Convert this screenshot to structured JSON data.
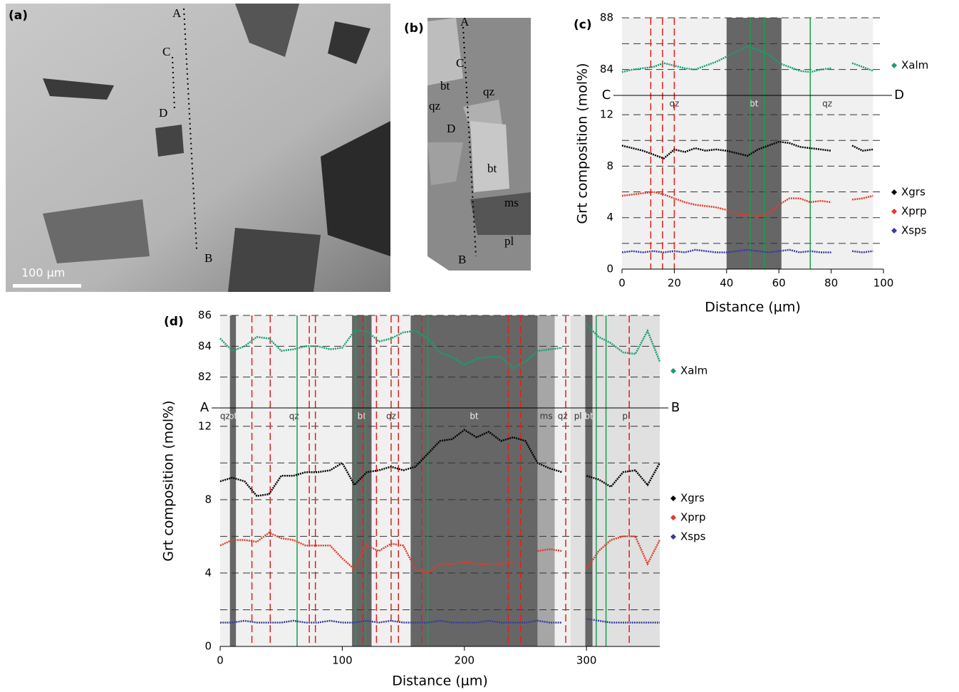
{
  "panels": [
    {
      "label": "(a)",
      "annotations": [
        "A",
        "C",
        "D",
        "B"
      ],
      "scale_bar": "100 µm"
    },
    {
      "label": "(b)",
      "annotations": [
        "A",
        "C",
        "bt",
        "qz",
        "qz",
        "D",
        "bt",
        "ms",
        "pl",
        "B"
      ]
    }
  ],
  "chart_data": [
    {
      "type": "line",
      "panel_label": "(c)",
      "xlabel": "Distance (µm)",
      "ylabel": "Grt composition (mol%)",
      "section_start": "C",
      "section_end": "D",
      "xlim": [
        0,
        100
      ],
      "xticks": [
        0,
        20,
        40,
        60,
        80,
        100
      ],
      "ylim": [
        0,
        13.5
      ],
      "yticks": [
        0,
        4,
        8,
        12
      ],
      "ygrid": [
        2,
        4,
        6,
        8,
        10,
        12
      ],
      "ylim_upper": [
        82,
        88
      ],
      "yticks_upper": [
        84,
        88
      ],
      "ygrid_upper": [
        84,
        86,
        88
      ],
      "bands": [
        {
          "from": 0,
          "to": 40,
          "label": "qz",
          "color": "#f0f0f0"
        },
        {
          "from": 40,
          "to": 61,
          "label": "bt",
          "color": "#666666"
        },
        {
          "from": 61,
          "to": 96,
          "label": "qz",
          "color": "#f0f0f0"
        }
      ],
      "red_lines": [
        11,
        15.5,
        20
      ],
      "green_lines": [
        49,
        54.5,
        72
      ],
      "x": [
        0,
        4,
        8,
        12,
        16,
        20,
        24,
        28,
        32,
        36,
        40,
        44,
        48,
        52,
        56,
        60,
        64,
        68,
        72,
        76,
        80,
        84,
        88,
        92,
        96
      ],
      "series": [
        {
          "name": "Xalm",
          "color": "#1a9e6e",
          "axis": "upper",
          "values": [
            83.8,
            84,
            84.1,
            84.2,
            84.5,
            84.3,
            84.1,
            84,
            84.3,
            84.6,
            85,
            85.4,
            85.8,
            85.5,
            85.2,
            84.5,
            84.2,
            83.9,
            83.8,
            84,
            84.1,
            null,
            84.5,
            84.2,
            83.9
          ]
        },
        {
          "name": "Xgrs",
          "color": "#000000",
          "values": [
            9.6,
            9.4,
            9.2,
            8.9,
            8.6,
            9.3,
            9.1,
            9.4,
            9.2,
            9.3,
            9.2,
            9.0,
            8.8,
            9.3,
            9.6,
            9.9,
            9.8,
            9.5,
            9.4,
            9.3,
            9.2,
            null,
            9.6,
            9.2,
            9.3
          ]
        },
        {
          "name": "Xprp",
          "color": "#e23a2a",
          "values": [
            5.7,
            5.8,
            5.9,
            6,
            5.8,
            5.5,
            5.2,
            5,
            4.9,
            4.8,
            4.6,
            4.3,
            4.2,
            4.1,
            4.3,
            5,
            5.5,
            5.5,
            5.2,
            5.3,
            5.2,
            null,
            5.4,
            5.5,
            5.7
          ]
        },
        {
          "name": "Xsps",
          "color": "#3a3a9a",
          "values": [
            1.3,
            1.4,
            1.3,
            1.4,
            1.3,
            1.4,
            1.3,
            1.5,
            1.4,
            1.3,
            1.3,
            1.4,
            1.5,
            1.4,
            1.3,
            1.4,
            1.5,
            1.3,
            1.4,
            1.3,
            1.3,
            null,
            1.4,
            1.3,
            1.4
          ]
        }
      ]
    },
    {
      "type": "line",
      "panel_label": "(d)",
      "xlabel": "Distance (µm)",
      "ylabel": "Grt composition (mol%)",
      "section_start": "A",
      "section_end": "B",
      "xlim": [
        0,
        360
      ],
      "xticks": [
        0,
        100,
        200,
        300
      ],
      "ylim": [
        0,
        13
      ],
      "yticks": [
        0,
        4,
        8,
        12
      ],
      "ygrid": [
        2,
        4,
        6,
        8,
        10,
        12
      ],
      "ylim_upper": [
        80,
        86
      ],
      "yticks_upper": [
        82,
        84,
        86
      ],
      "ygrid_upper": [
        82,
        84,
        86
      ],
      "bands": [
        {
          "from": 0,
          "to": 8,
          "label": "qz",
          "color": "#f0f0f0"
        },
        {
          "from": 8,
          "to": 13,
          "label": "bt",
          "color": "#666666"
        },
        {
          "from": 13,
          "to": 108,
          "label": "qz",
          "color": "#f0f0f0"
        },
        {
          "from": 108,
          "to": 124,
          "label": "bt",
          "color": "#666666"
        },
        {
          "from": 124,
          "to": 156,
          "label": "qz",
          "color": "#f0f0f0"
        },
        {
          "from": 156,
          "to": 260,
          "label": "bt",
          "color": "#666666"
        },
        {
          "from": 260,
          "to": 274,
          "label": "ms",
          "color": "#a6a6a6"
        },
        {
          "from": 274,
          "to": 287,
          "label": "qz",
          "color": "#f0f0f0"
        },
        {
          "from": 287,
          "to": 299,
          "label": "pl",
          "color": "#e0e0e0"
        },
        {
          "from": 299,
          "to": 305,
          "label": "bt",
          "color": "#666666"
        },
        {
          "from": 305,
          "to": 360,
          "label": "pl",
          "color": "#e0e0e0"
        }
      ],
      "red_lines": [
        26,
        41,
        73,
        78,
        117,
        128,
        140,
        146,
        165,
        236,
        246,
        283,
        335
      ],
      "green_lines": [
        63,
        111,
        119,
        170,
        308,
        316
      ],
      "x": [
        0,
        10,
        20,
        30,
        40,
        50,
        60,
        70,
        80,
        90,
        100,
        110,
        120,
        130,
        140,
        150,
        160,
        170,
        180,
        190,
        200,
        210,
        220,
        230,
        240,
        250,
        260,
        270,
        280,
        290,
        300,
        310,
        320,
        330,
        340,
        350,
        360
      ],
      "series": [
        {
          "name": "Xalm",
          "color": "#1a9e6e",
          "axis": "upper",
          "values": [
            84.5,
            83.7,
            84,
            84.6,
            84.5,
            83.7,
            83.8,
            84,
            84,
            83.8,
            83.9,
            85,
            85,
            84.3,
            84.5,
            84.9,
            85,
            84.5,
            83.6,
            83.3,
            82.8,
            83.2,
            83.3,
            83.3,
            82.6,
            83,
            83.7,
            83.8,
            83.9,
            null,
            85.4,
            84.6,
            84.2,
            83.6,
            83.5,
            85,
            83
          ]
        },
        {
          "name": "Xgrs",
          "color": "#000000",
          "values": [
            9,
            9.2,
            9,
            8.2,
            8.3,
            9.3,
            9.3,
            9.5,
            9.5,
            9.6,
            10,
            8.8,
            9.5,
            9.6,
            9.8,
            9.6,
            9.8,
            10.5,
            11.2,
            11.3,
            11.8,
            11.4,
            11.7,
            11.2,
            11.4,
            11.2,
            10,
            9.7,
            9.5,
            null,
            9.3,
            9.1,
            8.7,
            9.5,
            9.6,
            8.8,
            10
          ]
        },
        {
          "name": "Xprp",
          "color": "#e23a2a",
          "values": [
            5.5,
            5.8,
            5.8,
            5.7,
            6.2,
            5.9,
            5.8,
            5.5,
            5.5,
            5.5,
            4.8,
            4.2,
            5.5,
            5.2,
            5.6,
            5.5,
            4.2,
            4,
            4.5,
            4.5,
            4.6,
            4.5,
            4.5,
            4.5,
            4.6,
            null,
            5.2,
            5.3,
            5.2,
            null,
            4.2,
            5.2,
            5.8,
            6,
            6,
            4.5,
            5.8
          ]
        },
        {
          "name": "Xsps",
          "color": "#3a3a9a",
          "values": [
            1.3,
            1.3,
            1.4,
            1.3,
            1.3,
            1.3,
            1.4,
            1.3,
            1.3,
            1.4,
            1.3,
            1.3,
            1.4,
            1.3,
            1.4,
            1.3,
            1.3,
            1.3,
            1.4,
            1.3,
            1.3,
            1.3,
            1.4,
            1.3,
            1.3,
            1.3,
            1.4,
            1.3,
            1.3,
            null,
            1.5,
            1.4,
            1.3,
            1.3,
            1.3,
            1.3,
            1.3
          ]
        }
      ]
    }
  ]
}
